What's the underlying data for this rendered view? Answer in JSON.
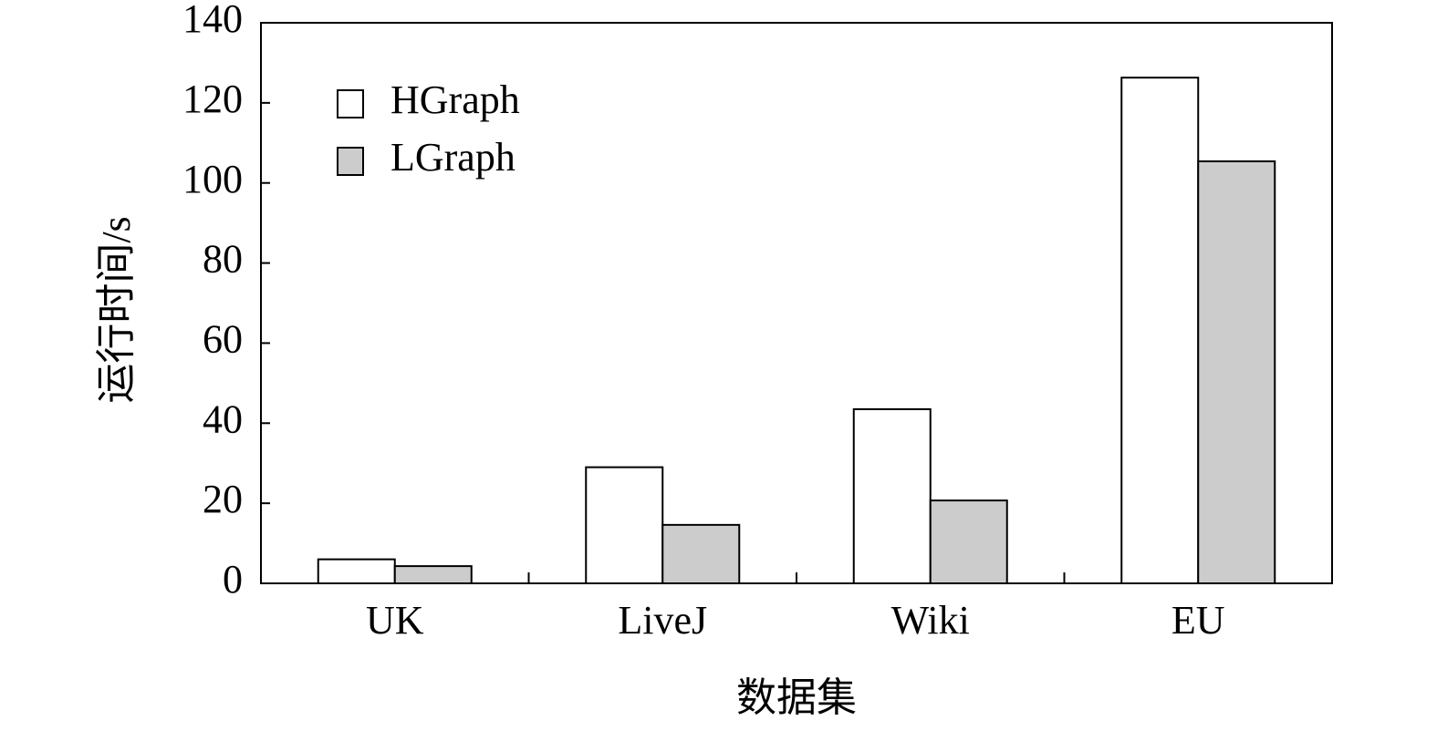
{
  "chart_data": {
    "type": "bar",
    "x_label": "数据集",
    "y_label": "运行时间/s",
    "categories": [
      "UK",
      "LiveJ",
      "Wiki",
      "EU"
    ],
    "series": [
      {
        "name": "HGraph",
        "color": "#ffffff",
        "values": [
          6,
          29,
          43.5,
          126.3
        ]
      },
      {
        "name": "LGraph",
        "color": "#cccccc",
        "values": [
          4.3,
          14.6,
          20.7,
          105.4
        ]
      }
    ],
    "ylim": [
      0,
      140
    ],
    "yticks": [
      0,
      20,
      40,
      60,
      80,
      100,
      120,
      140
    ],
    "legend": "upper left"
  }
}
